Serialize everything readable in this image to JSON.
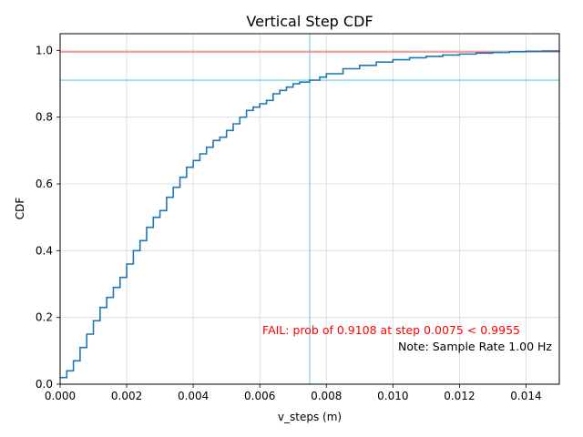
{
  "chart_data": {
    "type": "line",
    "title": "Vertical Step CDF",
    "xlabel": "v_steps (m)",
    "ylabel": "CDF",
    "xlim": [
      0,
      0.015
    ],
    "ylim": [
      0,
      1.05
    ],
    "grid": true,
    "x_ticks": [
      "0.000",
      "0.002",
      "0.004",
      "0.006",
      "0.008",
      "0.010",
      "0.012",
      "0.014"
    ],
    "x_tick_values": [
      0,
      0.002,
      0.004,
      0.006,
      0.008,
      0.01,
      0.012,
      0.014
    ],
    "y_ticks": [
      "0.0",
      "0.2",
      "0.4",
      "0.6",
      "0.8",
      "1.0"
    ],
    "y_tick_values": [
      0,
      0.2,
      0.4,
      0.6,
      0.8,
      1.0
    ],
    "series": [
      {
        "color": "#1f77b4",
        "x": [
          0,
          0.0002,
          0.0004,
          0.0006,
          0.0008,
          0.001,
          0.0012,
          0.0014,
          0.0016,
          0.0018,
          0.002,
          0.0022,
          0.0024,
          0.0026,
          0.0028,
          0.003,
          0.0032,
          0.0034,
          0.0036,
          0.0038,
          0.004,
          0.0042,
          0.0044,
          0.0046,
          0.0048,
          0.005,
          0.0052,
          0.0054,
          0.0056,
          0.0058,
          0.006,
          0.0062,
          0.0064,
          0.0066,
          0.0068,
          0.007,
          0.0072,
          0.0075,
          0.0078,
          0.008,
          0.0085,
          0.009,
          0.0095,
          0.01,
          0.0105,
          0.011,
          0.0115,
          0.012,
          0.0125,
          0.013,
          0.0135,
          0.014,
          0.0145,
          0.015
        ],
        "y": [
          0.02,
          0.04,
          0.07,
          0.11,
          0.15,
          0.19,
          0.23,
          0.26,
          0.29,
          0.32,
          0.36,
          0.4,
          0.43,
          0.47,
          0.5,
          0.52,
          0.56,
          0.59,
          0.62,
          0.65,
          0.67,
          0.69,
          0.71,
          0.73,
          0.74,
          0.76,
          0.78,
          0.8,
          0.82,
          0.83,
          0.84,
          0.85,
          0.87,
          0.88,
          0.89,
          0.9,
          0.905,
          0.9108,
          0.92,
          0.93,
          0.945,
          0.955,
          0.965,
          0.972,
          0.978,
          0.982,
          0.986,
          0.989,
          0.992,
          0.994,
          0.996,
          0.997,
          0.998,
          0.999
        ]
      }
    ],
    "threshold_line": {
      "y": 0.9955,
      "color": "#e8434a"
    },
    "marker_vline": {
      "x": 0.0075,
      "color": "#33c3c8"
    },
    "marker_hline": {
      "y": 0.9108,
      "color": "#33c3c8"
    },
    "annotations": [
      {
        "text": "FAIL: prob of 0.9108 at step 0.0075 < 0.9955",
        "color": "#ff0000"
      },
      {
        "text": "Note: Sample Rate 1.00 Hz",
        "color": "#000000"
      }
    ]
  }
}
